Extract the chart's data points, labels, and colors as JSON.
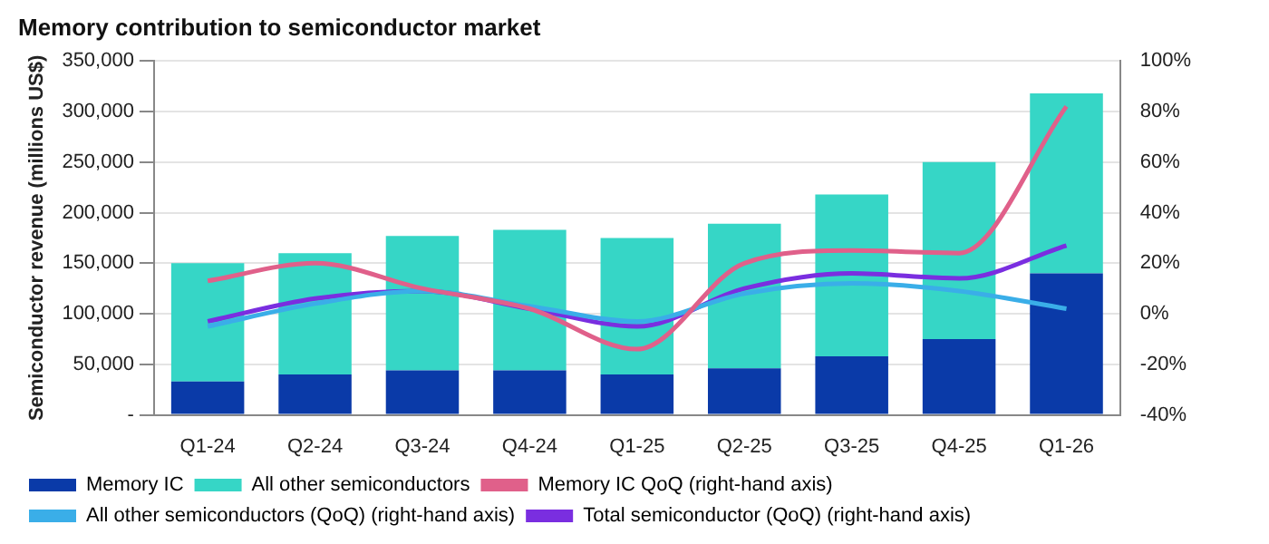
{
  "chart_data": {
    "type": "bar",
    "title": "Memory contribution to semiconductor market",
    "ylabel": "Semiconductor revenue (millions US$)",
    "categories": [
      "Q1-24",
      "Q2-24",
      "Q3-24",
      "Q4-24",
      "Q1-25",
      "Q2-25",
      "Q3-25",
      "Q4-25",
      "Q1-26"
    ],
    "stacked": true,
    "series": [
      {
        "name": "Memory IC",
        "color": "#0a3aa8",
        "values": [
          33000,
          40000,
          44000,
          44000,
          40000,
          46000,
          58000,
          75000,
          140000
        ]
      },
      {
        "name": "All other semiconductors",
        "color": "#36d6c6",
        "values": [
          117000,
          120000,
          133000,
          139000,
          135000,
          143000,
          160000,
          175000,
          178000
        ]
      },
      {
        "type": "line",
        "axis": "y2",
        "name": "Memory IC QoQ (right-hand axis)",
        "color": "#e0608a",
        "values": [
          13,
          20,
          10,
          2,
          -14,
          20,
          25,
          24,
          82
        ]
      },
      {
        "type": "line",
        "axis": "y2",
        "name": "All other semiconductors (QoQ) (right-hand axis)",
        "color": "#3aaee8",
        "values": [
          -5,
          4,
          9,
          3,
          -3,
          8,
          12,
          9,
          2
        ]
      },
      {
        "type": "line",
        "axis": "y2",
        "name": "Total semiconductor (QoQ) (right-hand axis)",
        "color": "#7a2ee0",
        "values": [
          -3,
          6,
          9,
          2,
          -5,
          10,
          16,
          14,
          27
        ]
      }
    ],
    "ylim": [
      0,
      350000
    ],
    "yticks": [
      {
        "value": 0,
        "label": "-"
      },
      {
        "value": 50000,
        "label": "50,000"
      },
      {
        "value": 100000,
        "label": "100,000"
      },
      {
        "value": 150000,
        "label": "150,000"
      },
      {
        "value": 200000,
        "label": "200,000"
      },
      {
        "value": 250000,
        "label": "250,000"
      },
      {
        "value": 300000,
        "label": "300,000"
      },
      {
        "value": 350000,
        "label": "350,000"
      }
    ],
    "y2lim": [
      -40,
      100
    ],
    "y2ticks": [
      {
        "value": -40,
        "label": "-40%"
      },
      {
        "value": -20,
        "label": "-20%"
      },
      {
        "value": 0,
        "label": "0%"
      },
      {
        "value": 20,
        "label": "20%"
      },
      {
        "value": 40,
        "label": "40%"
      },
      {
        "value": 60,
        "label": "60%"
      },
      {
        "value": 80,
        "label": "80%"
      },
      {
        "value": 100,
        "label": "100%"
      }
    ],
    "grid": "y",
    "legend": "bottom",
    "marker": "none",
    "line_style": "solid"
  }
}
